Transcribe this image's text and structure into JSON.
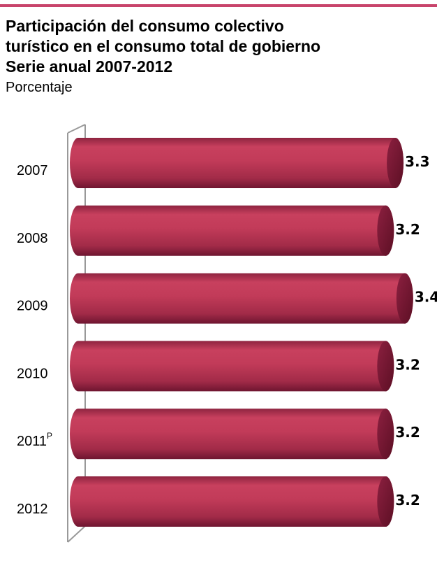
{
  "header": {
    "title_lines": [
      "Participación del consumo colectivo",
      "turístico en el consumo total de gobierno",
      "Serie anual 2007-2012"
    ],
    "subtitle": "Porcentaje"
  },
  "chart_data": {
    "type": "bar",
    "orientation": "horizontal",
    "title": "Participación del consumo colectivo turístico en el consumo total de gobierno Serie anual 2007-2012",
    "subtitle": "Porcentaje",
    "categories": [
      "2007",
      "2008",
      "2009",
      "2010",
      "2011",
      "2012"
    ],
    "category_superscripts": [
      "",
      "",
      "",
      "",
      "P",
      ""
    ],
    "values": [
      3.3,
      3.2,
      3.4,
      3.2,
      3.2,
      3.2
    ],
    "value_labels": [
      "3.3",
      "3.2",
      "3.4",
      "3.2",
      "3.2",
      "3.2"
    ],
    "xlabel": "",
    "ylabel": "",
    "grid": false,
    "legend": "none",
    "style": "3d-cylinder",
    "colors": {
      "bar_light": "#c8405e",
      "bar_mid": "#b0304f",
      "bar_dark": "#7a1a33",
      "bar_end": "#6a1129",
      "wall": "#999999",
      "accent_rule": "#c8446b"
    }
  }
}
